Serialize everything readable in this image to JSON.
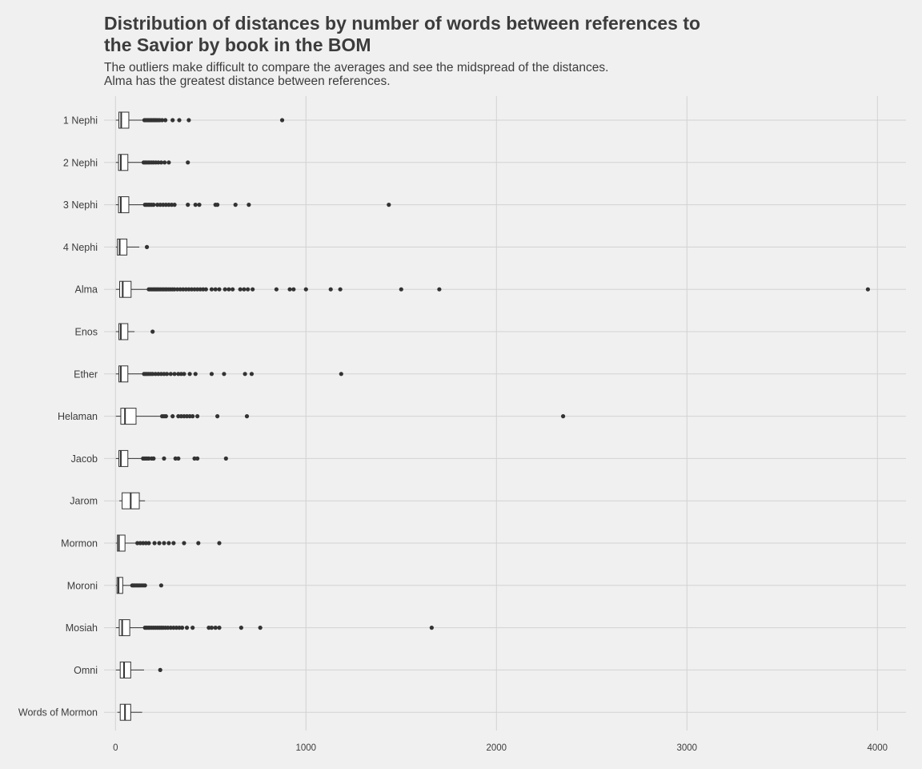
{
  "chart_data": {
    "type": "boxplot",
    "orientation": "horizontal",
    "title": "Distribution of distances by number of words between references to\n the Savior by book in the BOM",
    "subtitle": "The outliers make difficult to compare the averages and see the midspread of the distances.\nAlma has the greatest distance between references.",
    "xlabel": "",
    "ylabel": "",
    "xlim": [
      -60,
      4150
    ],
    "x_ticks": [
      0,
      1000,
      2000,
      3000,
      4000
    ],
    "grid": true,
    "colors": {
      "background": "#f0f0f0",
      "grid": "#d2d2d2",
      "box_fill": "#ffffff",
      "box_line": "#333333",
      "outlier": "#333333"
    },
    "categories": [
      "1 Nephi",
      "2 Nephi",
      "3 Nephi",
      "4 Nephi",
      "Alma",
      "Enos",
      "Ether",
      "Helaman",
      "Jacob",
      "Jarom",
      "Mormon",
      "Moroni",
      "Mosiah",
      "Omni",
      "Words of Mormon"
    ],
    "boxes": [
      {
        "category": "1 Nephi",
        "whisker_low": 2,
        "q1": 18,
        "median": 30,
        "q3": 70,
        "whisker_high": 148,
        "outliers": [
          152,
          160,
          168,
          175,
          182,
          190,
          198,
          205,
          213,
          222,
          232,
          245,
          262,
          300,
          335,
          385,
          875
        ]
      },
      {
        "category": "2 Nephi",
        "whisker_low": 2,
        "q1": 16,
        "median": 28,
        "q3": 65,
        "whisker_high": 140,
        "outliers": [
          148,
          155,
          163,
          172,
          180,
          190,
          200,
          212,
          225,
          240,
          258,
          280,
          380
        ]
      },
      {
        "category": "3 Nephi",
        "whisker_low": 2,
        "q1": 16,
        "median": 28,
        "q3": 70,
        "whisker_high": 150,
        "outliers": [
          155,
          163,
          172,
          180,
          190,
          200,
          220,
          235,
          250,
          265,
          280,
          295,
          310,
          380,
          420,
          440,
          525,
          535,
          630,
          700,
          1435
        ]
      },
      {
        "category": "4 Nephi",
        "whisker_low": 2,
        "q1": 10,
        "median": 22,
        "q3": 60,
        "whisker_high": 125,
        "outliers": [
          165
        ]
      },
      {
        "category": "Alma",
        "whisker_low": 2,
        "q1": 22,
        "median": 38,
        "q3": 82,
        "whisker_high": 170,
        "outliers": [
          175,
          182,
          190,
          198,
          205,
          213,
          220,
          228,
          236,
          245,
          253,
          262,
          270,
          280,
          290,
          300,
          310,
          325,
          340,
          355,
          370,
          385,
          400,
          415,
          430,
          445,
          460,
          475,
          505,
          525,
          545,
          575,
          595,
          615,
          655,
          675,
          695,
          720,
          845,
          915,
          935,
          1000,
          1130,
          1180,
          1500,
          1700,
          3950
        ]
      },
      {
        "category": "Enos",
        "whisker_low": 2,
        "q1": 18,
        "median": 28,
        "q3": 65,
        "whisker_high": 100,
        "outliers": [
          195
        ]
      },
      {
        "category": "Ether",
        "whisker_low": 2,
        "q1": 18,
        "median": 28,
        "q3": 65,
        "whisker_high": 145,
        "outliers": [
          150,
          158,
          166,
          175,
          185,
          195,
          210,
          225,
          240,
          255,
          270,
          290,
          310,
          330,
          345,
          360,
          390,
          420,
          505,
          570,
          680,
          715,
          1185
        ]
      },
      {
        "category": "Helaman",
        "whisker_low": 2,
        "q1": 28,
        "median": 50,
        "q3": 108,
        "whisker_high": 240,
        "outliers": [
          245,
          255,
          265,
          300,
          330,
          345,
          360,
          375,
          390,
          405,
          430,
          535,
          690,
          2350
        ]
      },
      {
        "category": "Jacob",
        "whisker_low": 2,
        "q1": 18,
        "median": 28,
        "q3": 65,
        "whisker_high": 140,
        "outliers": [
          145,
          155,
          165,
          175,
          190,
          200,
          255,
          315,
          330,
          415,
          430,
          580
        ]
      },
      {
        "category": "Jarom",
        "whisker_low": 20,
        "q1": 35,
        "median": 80,
        "q3": 125,
        "whisker_high": 155,
        "outliers": []
      },
      {
        "category": "Mormon",
        "whisker_low": 2,
        "q1": 10,
        "median": 18,
        "q3": 50,
        "whisker_high": 110,
        "outliers": [
          115,
          130,
          145,
          160,
          175,
          205,
          230,
          255,
          280,
          305,
          360,
          435,
          545
        ]
      },
      {
        "category": "Moroni",
        "whisker_low": 2,
        "q1": 8,
        "median": 16,
        "q3": 38,
        "whisker_high": 80,
        "outliers": [
          88,
          95,
          102,
          110,
          118,
          126,
          135,
          145,
          155,
          240
        ]
      },
      {
        "category": "Mosiah",
        "whisker_low": 2,
        "q1": 20,
        "median": 35,
        "q3": 75,
        "whisker_high": 150,
        "outliers": [
          155,
          163,
          172,
          180,
          190,
          200,
          210,
          220,
          230,
          240,
          250,
          262,
          275,
          290,
          305,
          320,
          335,
          350,
          375,
          405,
          490,
          505,
          525,
          545,
          660,
          760,
          1660
        ]
      },
      {
        "category": "Omni",
        "whisker_low": 2,
        "q1": 25,
        "median": 45,
        "q3": 80,
        "whisker_high": 150,
        "outliers": [
          235
        ]
      },
      {
        "category": "Words of Mormon",
        "whisker_low": 10,
        "q1": 25,
        "median": 50,
        "q3": 80,
        "whisker_high": 140,
        "outliers": []
      }
    ]
  }
}
